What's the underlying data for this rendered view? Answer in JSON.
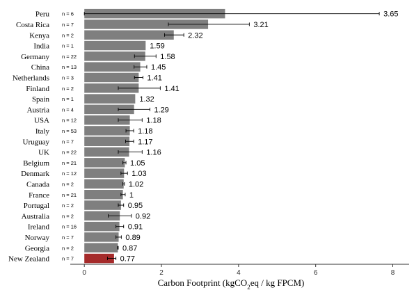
{
  "chart_data": {
    "type": "bar",
    "orientation": "horizontal",
    "xlabel_parts": [
      "Carbon Footprint (kgCO",
      "2",
      "eq / kg FPCM)"
    ],
    "xlim": [
      -0.6,
      8.4
    ],
    "xticks": [
      "0",
      "2",
      "4",
      "6",
      "8"
    ],
    "grid": false,
    "highlight_color": "#a52a2a",
    "bar_color": "#7f7f7f",
    "categories": [
      "Peru",
      "Costa Rica",
      "Kenya",
      "India",
      "Germany",
      "China",
      "Netherlands",
      "Finland",
      "Spain",
      "Austria",
      "USA",
      "Italy",
      "Uruguay",
      "UK",
      "Belgium",
      "Denmark",
      "Canada",
      "France",
      "Portugal",
      "Australia",
      "Ireland",
      "Norway",
      "Georgia",
      "New Zealand"
    ],
    "n_labels": [
      "n = 6",
      "n = 7",
      "n = 2",
      "n = 1",
      "n = 22",
      "n = 13",
      "n = 3",
      "n = 2",
      "n = 1",
      "n = 4",
      "n = 12",
      "n = 53",
      "n = 7",
      "n = 22",
      "n = 21",
      "n = 12",
      "n = 2",
      "n = 21",
      "n = 2",
      "n = 2",
      "n = 16",
      "n = 7",
      "n = 2",
      "n = 7"
    ],
    "values": [
      3.65,
      3.21,
      2.32,
      1.59,
      1.58,
      1.45,
      1.41,
      1.41,
      1.32,
      1.29,
      1.18,
      1.18,
      1.17,
      1.16,
      1.05,
      1.03,
      1.02,
      1,
      0.95,
      0.92,
      0.91,
      0.89,
      0.87,
      0.77
    ],
    "value_labels": [
      "3.65",
      "3.21",
      "2.32",
      "1.59",
      "1.58",
      "1.45",
      "1.41",
      "1.41",
      "1.32",
      "1.29",
      "1.18",
      "1.18",
      "1.17",
      "1.16",
      "1.05",
      "1.03",
      "1.02",
      "1",
      "0.95",
      "0.92",
      "0.91",
      "0.89",
      "0.87",
      "0.77"
    ],
    "error_low": [
      0.0,
      2.18,
      2.08,
      null,
      1.3,
      1.29,
      1.3,
      0.88,
      null,
      0.88,
      0.88,
      1.08,
      1.07,
      0.88,
      1.0,
      0.95,
      1.0,
      0.95,
      0.88,
      0.62,
      0.82,
      0.82,
      0.86,
      0.6
    ],
    "error_high": [
      7.65,
      4.28,
      2.58,
      null,
      1.86,
      1.62,
      1.52,
      1.97,
      null,
      1.7,
      1.5,
      1.28,
      1.28,
      1.5,
      1.08,
      1.12,
      1.04,
      1.06,
      1.02,
      1.22,
      1.02,
      0.96,
      0.88,
      0.82
    ],
    "highlighted": [
      "New Zealand"
    ]
  }
}
